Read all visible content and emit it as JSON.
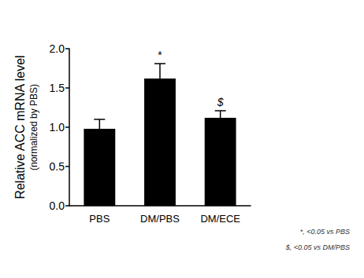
{
  "chart_data": {
    "type": "bar",
    "categories": [
      "PBS",
      "DM/PBS",
      "DM/ECE"
    ],
    "values": [
      0.98,
      1.62,
      1.12
    ],
    "errors": [
      0.12,
      0.19,
      0.09
    ],
    "significance": [
      null,
      "*",
      "$"
    ],
    "color": "#000000",
    "ylabel": "Relative ACC mRNA level",
    "ylabel_sub": "(normalized by PBS)",
    "ylim": [
      0,
      2
    ],
    "yticks": [
      {
        "value": 0,
        "label": "0.0"
      },
      {
        "value": 0.5,
        "label": "0.5"
      },
      {
        "value": 1,
        "label": "1.0"
      },
      {
        "value": 1.5,
        "label": "1.5"
      },
      {
        "value": 2,
        "label": "2.0"
      }
    ],
    "notes": [
      "*, <0.05 vs PBS",
      "$, <0.05 vs DM/PBS"
    ],
    "grid": false
  }
}
